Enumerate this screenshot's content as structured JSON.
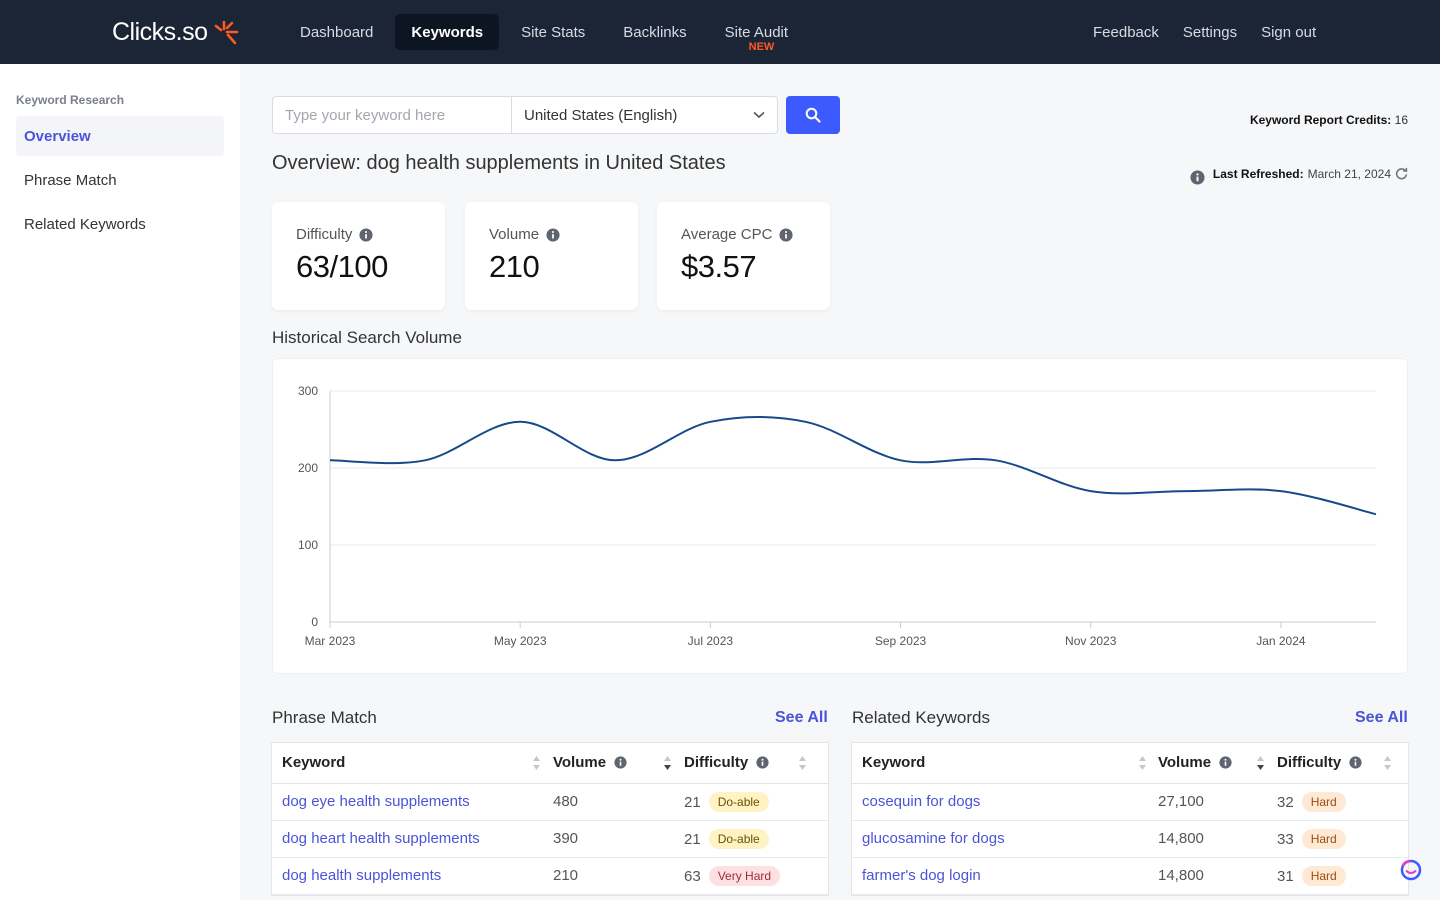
{
  "brand": {
    "name": "Clicks.so",
    "accent": "#ff5a1f"
  },
  "nav": {
    "items": [
      {
        "label": "Dashboard"
      },
      {
        "label": "Keywords",
        "active": true
      },
      {
        "label": "Site Stats"
      },
      {
        "label": "Backlinks"
      },
      {
        "label": "Site Audit",
        "badge": "NEW"
      }
    ],
    "right": [
      {
        "label": "Feedback"
      },
      {
        "label": "Settings"
      },
      {
        "label": "Sign out"
      }
    ]
  },
  "sidebar": {
    "heading": "Keyword Research",
    "items": [
      {
        "label": "Overview",
        "active": true
      },
      {
        "label": "Phrase Match"
      },
      {
        "label": "Related Keywords"
      }
    ]
  },
  "search": {
    "placeholder": "Type your keyword here",
    "value": "",
    "country": "United States (English)"
  },
  "credits": {
    "label": "Keyword Report Credits:",
    "value": "16"
  },
  "refreshed": {
    "label": "Last Refreshed:",
    "value": "March 21, 2024"
  },
  "overview": {
    "title": "Overview: dog health supplements in United States"
  },
  "metrics": [
    {
      "label": "Difficulty",
      "value": "63/100"
    },
    {
      "label": "Volume",
      "value": "210"
    },
    {
      "label": "Average CPC",
      "value": "$3.57"
    }
  ],
  "history": {
    "title": "Historical Search Volume"
  },
  "chart_data": {
    "type": "line",
    "title": "Historical Search Volume",
    "x": [
      "2023-03",
      "2023-04",
      "2023-05",
      "2023-06",
      "2023-07",
      "2023-08",
      "2023-09",
      "2023-10",
      "2023-11",
      "2023-12",
      "2024-01",
      "2024-02"
    ],
    "x_ticks": [
      "Mar 2023",
      "May 2023",
      "Jul 2023",
      "Sep 2023",
      "Nov 2023",
      "Jan 2024"
    ],
    "series": [
      {
        "values": [
          210,
          210,
          260,
          210,
          260,
          260,
          210,
          210,
          170,
          170,
          170,
          140
        ]
      }
    ],
    "ylim": [
      0,
      300
    ],
    "y_ticks": [
      0,
      100,
      200,
      300
    ],
    "grid": true,
    "color": "#174a8a"
  },
  "phrase_match": {
    "title": "Phrase Match",
    "see_all": "See All",
    "columns": [
      "Keyword",
      "Volume",
      "Difficulty"
    ],
    "rows": [
      {
        "keyword": "dog eye health supplements",
        "volume": "480",
        "difficulty": "21",
        "level": "Do-able"
      },
      {
        "keyword": "dog heart health supplements",
        "volume": "390",
        "difficulty": "21",
        "level": "Do-able"
      },
      {
        "keyword": "dog health supplements",
        "volume": "210",
        "difficulty": "63",
        "level": "Very Hard"
      }
    ]
  },
  "related": {
    "title": "Related Keywords",
    "see_all": "See All",
    "columns": [
      "Keyword",
      "Volume",
      "Difficulty"
    ],
    "rows": [
      {
        "keyword": "cosequin for dogs",
        "volume": "27,100",
        "difficulty": "32",
        "level": "Hard"
      },
      {
        "keyword": "glucosamine for dogs",
        "volume": "14,800",
        "difficulty": "33",
        "level": "Hard"
      },
      {
        "keyword": "farmer's dog login",
        "volume": "14,800",
        "difficulty": "31",
        "level": "Hard"
      }
    ]
  }
}
